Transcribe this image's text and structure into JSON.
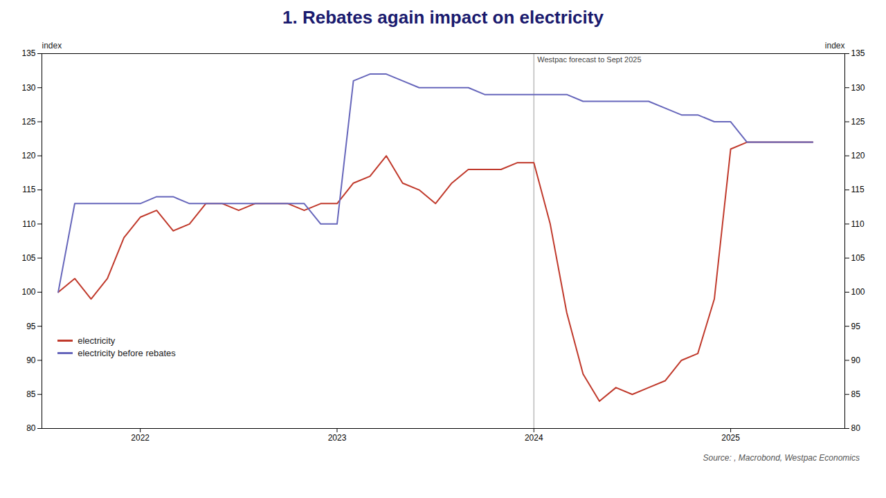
{
  "chart_data": {
    "type": "line",
    "title": "1. Rebates again impact on electricity",
    "ylabel": "index",
    "y2label": "index",
    "source": "Source: , Macrobond, Westpac Economics",
    "x": [
      2021.583,
      2021.667,
      2021.75,
      2021.833,
      2021.917,
      2022.0,
      2022.083,
      2022.167,
      2022.25,
      2022.333,
      2022.417,
      2022.5,
      2022.583,
      2022.667,
      2022.75,
      2022.833,
      2022.917,
      2023.0,
      2023.083,
      2023.167,
      2023.25,
      2023.333,
      2023.417,
      2023.5,
      2023.583,
      2023.667,
      2023.75,
      2023.833,
      2023.917,
      2024.0,
      2024.083,
      2024.167,
      2024.25,
      2024.333,
      2024.417,
      2024.5,
      2024.583,
      2024.667,
      2024.75,
      2024.833,
      2024.917,
      2025.0,
      2025.083,
      2025.167,
      2025.25,
      2025.333,
      2025.417
    ],
    "series": [
      {
        "name": "electricity",
        "color": "#c0392b",
        "values": [
          100,
          102,
          99,
          102,
          108,
          111,
          112,
          109,
          110,
          113,
          113,
          112,
          113,
          113,
          113,
          112,
          113,
          113,
          116,
          117,
          120,
          116,
          115,
          113,
          116,
          118,
          118,
          118,
          119,
          119,
          110,
          97,
          88,
          84,
          86,
          85,
          86,
          87,
          90,
          91,
          99,
          121,
          122,
          122,
          122,
          122,
          122
        ]
      },
      {
        "name": "electricity before rebates",
        "color": "#6666bb",
        "values": [
          100,
          113,
          113,
          113,
          113,
          113,
          114,
          114,
          113,
          113,
          113,
          113,
          113,
          113,
          113,
          113,
          110,
          110,
          131,
          132,
          132,
          131,
          130,
          130,
          130,
          130,
          129,
          129,
          129,
          129,
          129,
          129,
          128,
          128,
          128,
          128,
          128,
          127,
          126,
          126,
          125,
          125,
          122,
          122,
          122,
          122,
          122
        ]
      }
    ],
    "xlim": [
      2021.5,
      2025.58
    ],
    "xticks": [
      2022,
      2023,
      2024,
      2025
    ],
    "ylim": [
      80,
      135
    ],
    "yticks": [
      80,
      85,
      90,
      95,
      100,
      105,
      110,
      115,
      120,
      125,
      130,
      135
    ],
    "y2lim": [
      80,
      135
    ],
    "y2ticks": [
      80,
      85,
      90,
      95,
      100,
      105,
      110,
      115,
      120,
      125,
      130,
      135
    ],
    "grid": false,
    "legend": "lower left",
    "annotations": [
      {
        "type": "vline",
        "x": 2024.0,
        "color": "#aaaaaa",
        "text": "Westpac forecast to Sept 2025"
      }
    ]
  }
}
